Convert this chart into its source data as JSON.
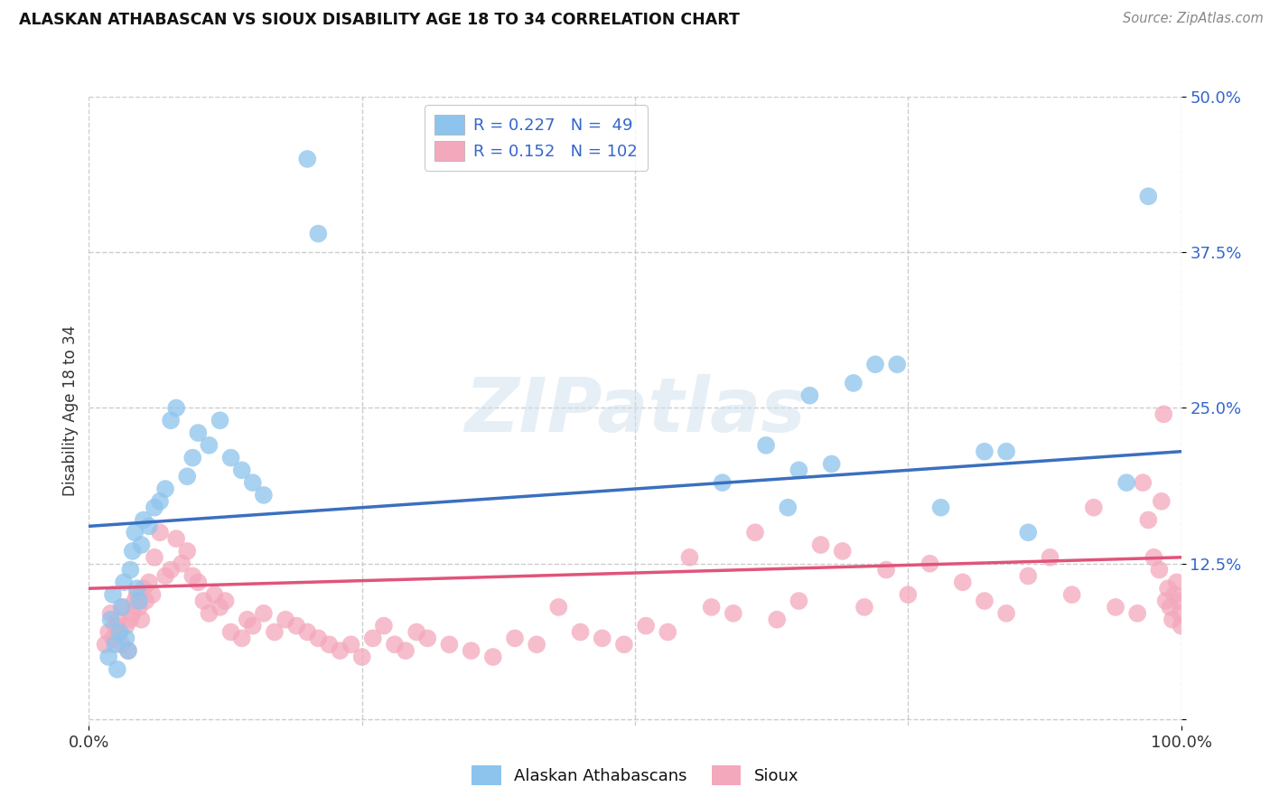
{
  "title": "ALASKAN ATHABASCAN VS SIOUX DISABILITY AGE 18 TO 34 CORRELATION CHART",
  "source": "Source: ZipAtlas.com",
  "ylabel": "Disability Age 18 to 34",
  "xlim": [
    0.0,
    1.0
  ],
  "ylim": [
    -0.005,
    0.5
  ],
  "xticks": [
    0.0,
    1.0
  ],
  "xticklabels": [
    "0.0%",
    "100.0%"
  ],
  "yticks": [
    0.0,
    0.125,
    0.25,
    0.375,
    0.5
  ],
  "yticklabels": [
    "",
    "12.5%",
    "25.0%",
    "37.5%",
    "50.0%"
  ],
  "blue_R": 0.227,
  "blue_N": 49,
  "pink_R": 0.152,
  "pink_N": 102,
  "blue_color": "#8DC4ED",
  "pink_color": "#F4A8BC",
  "blue_line_color": "#3B6FBF",
  "pink_line_color": "#E0547A",
  "legend_text_color": "#3366CC",
  "background_color": "#FFFFFF",
  "grid_color": "#CCCCCC",
  "watermark": "ZIPatlas",
  "blue_scatter_x": [
    0.018,
    0.02,
    0.022,
    0.024,
    0.026,
    0.028,
    0.03,
    0.032,
    0.034,
    0.036,
    0.038,
    0.04,
    0.042,
    0.044,
    0.046,
    0.048,
    0.05,
    0.055,
    0.06,
    0.065,
    0.07,
    0.075,
    0.08,
    0.09,
    0.095,
    0.1,
    0.11,
    0.12,
    0.13,
    0.14,
    0.15,
    0.16,
    0.2,
    0.21,
    0.58,
    0.62,
    0.64,
    0.65,
    0.66,
    0.68,
    0.7,
    0.72,
    0.74,
    0.78,
    0.82,
    0.84,
    0.86,
    0.95,
    0.97
  ],
  "blue_scatter_y": [
    0.05,
    0.08,
    0.1,
    0.06,
    0.04,
    0.07,
    0.09,
    0.11,
    0.065,
    0.055,
    0.12,
    0.135,
    0.15,
    0.105,
    0.095,
    0.14,
    0.16,
    0.155,
    0.17,
    0.175,
    0.185,
    0.24,
    0.25,
    0.195,
    0.21,
    0.23,
    0.22,
    0.24,
    0.21,
    0.2,
    0.19,
    0.18,
    0.45,
    0.39,
    0.19,
    0.22,
    0.17,
    0.2,
    0.26,
    0.205,
    0.27,
    0.285,
    0.285,
    0.17,
    0.215,
    0.215,
    0.15,
    0.19,
    0.42
  ],
  "pink_scatter_x": [
    0.015,
    0.018,
    0.02,
    0.022,
    0.024,
    0.026,
    0.028,
    0.03,
    0.032,
    0.034,
    0.036,
    0.038,
    0.04,
    0.042,
    0.044,
    0.046,
    0.048,
    0.05,
    0.052,
    0.055,
    0.058,
    0.06,
    0.065,
    0.07,
    0.075,
    0.08,
    0.085,
    0.09,
    0.095,
    0.1,
    0.105,
    0.11,
    0.115,
    0.12,
    0.125,
    0.13,
    0.14,
    0.145,
    0.15,
    0.16,
    0.17,
    0.18,
    0.19,
    0.2,
    0.21,
    0.22,
    0.23,
    0.24,
    0.25,
    0.26,
    0.27,
    0.28,
    0.29,
    0.3,
    0.31,
    0.33,
    0.35,
    0.37,
    0.39,
    0.41,
    0.43,
    0.45,
    0.47,
    0.49,
    0.51,
    0.53,
    0.55,
    0.57,
    0.59,
    0.61,
    0.63,
    0.65,
    0.67,
    0.69,
    0.71,
    0.73,
    0.75,
    0.77,
    0.8,
    0.82,
    0.84,
    0.86,
    0.88,
    0.9,
    0.92,
    0.94,
    0.96,
    0.965,
    0.97,
    0.975,
    0.98,
    0.982,
    0.984,
    0.986,
    0.988,
    0.99,
    0.992,
    0.994,
    0.996,
    0.998,
    0.999,
    1.0
  ],
  "pink_scatter_y": [
    0.06,
    0.07,
    0.085,
    0.065,
    0.075,
    0.08,
    0.07,
    0.06,
    0.09,
    0.075,
    0.055,
    0.08,
    0.085,
    0.095,
    0.1,
    0.09,
    0.08,
    0.105,
    0.095,
    0.11,
    0.1,
    0.13,
    0.15,
    0.115,
    0.12,
    0.145,
    0.125,
    0.135,
    0.115,
    0.11,
    0.095,
    0.085,
    0.1,
    0.09,
    0.095,
    0.07,
    0.065,
    0.08,
    0.075,
    0.085,
    0.07,
    0.08,
    0.075,
    0.07,
    0.065,
    0.06,
    0.055,
    0.06,
    0.05,
    0.065,
    0.075,
    0.06,
    0.055,
    0.07,
    0.065,
    0.06,
    0.055,
    0.05,
    0.065,
    0.06,
    0.09,
    0.07,
    0.065,
    0.06,
    0.075,
    0.07,
    0.13,
    0.09,
    0.085,
    0.15,
    0.08,
    0.095,
    0.14,
    0.135,
    0.09,
    0.12,
    0.1,
    0.125,
    0.11,
    0.095,
    0.085,
    0.115,
    0.13,
    0.1,
    0.17,
    0.09,
    0.085,
    0.19,
    0.16,
    0.13,
    0.12,
    0.175,
    0.245,
    0.095,
    0.105,
    0.09,
    0.08,
    0.1,
    0.11,
    0.095,
    0.085,
    0.075
  ],
  "blue_line_x0": 0.0,
  "blue_line_y0": 0.155,
  "blue_line_x1": 1.0,
  "blue_line_y1": 0.215,
  "pink_line_x0": 0.0,
  "pink_line_y0": 0.105,
  "pink_line_x1": 1.0,
  "pink_line_y1": 0.13
}
